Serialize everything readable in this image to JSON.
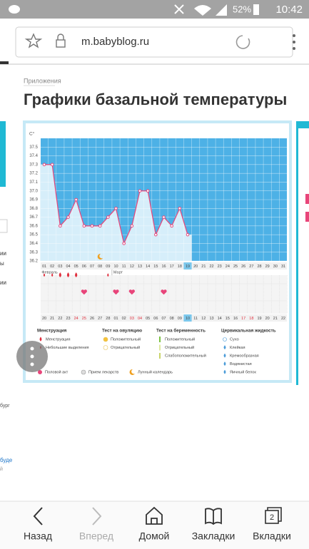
{
  "status_bar": {
    "battery": "52%",
    "time": "10:42"
  },
  "address_bar": {
    "url": "m.babyblog.ru"
  },
  "page": {
    "section": "Приложения",
    "title": "Графики базальной температуры",
    "left_fragments": [
      "ии",
      "ы",
      "ии",
      "бург",
      "буде",
      "й"
    ]
  },
  "chart_data": {
    "type": "line",
    "y_unit": "C°",
    "categories": [
      "01",
      "02",
      "03",
      "04",
      "05",
      "06",
      "07",
      "08",
      "09",
      "10",
      "11",
      "12",
      "13",
      "14",
      "15",
      "16",
      "17",
      "18",
      "19",
      "20",
      "21",
      "22",
      "23",
      "24",
      "25",
      "26",
      "27",
      "28",
      "29",
      "30",
      "31"
    ],
    "values": [
      37.3,
      37.3,
      36.6,
      36.7,
      36.9,
      36.6,
      36.6,
      36.6,
      36.7,
      36.8,
      36.4,
      36.6,
      37.0,
      37.0,
      36.5,
      36.7,
      36.6,
      36.8,
      36.5,
      null,
      null,
      null,
      null,
      null,
      null,
      null,
      null,
      null,
      null,
      null,
      null
    ],
    "color": "#e8457a",
    "fill_color": "#d6eefa",
    "background_color": "#4db1e6",
    "highlight_index": 18,
    "ylim": [
      36.2,
      37.6
    ],
    "yticks": [
      36.2,
      36.3,
      36.4,
      36.5,
      36.6,
      36.7,
      36.8,
      36.9,
      {
        "value": 37,
        "label": "37.0"
      },
      37.1,
      37.2,
      37.3,
      37.4,
      37.5
    ],
    "grid": true,
    "months": [
      {
        "label": "Февраль",
        "index": 0
      },
      {
        "label": "Март",
        "index": 9
      }
    ],
    "dates": [
      "20",
      "21",
      "22",
      "23",
      "24",
      "25",
      "26",
      "27",
      "28",
      "01",
      "02",
      "03",
      "04",
      "05",
      "06",
      "07",
      "08",
      "09",
      "10",
      "11",
      "12",
      "13",
      "14",
      "15",
      "16",
      "17",
      "18",
      "19",
      "20",
      "21",
      "22"
    ],
    "weekend": [
      false,
      false,
      false,
      false,
      true,
      true,
      false,
      false,
      false,
      false,
      false,
      true,
      true,
      false,
      false,
      false,
      false,
      false,
      false,
      false,
      false,
      false,
      false,
      false,
      false,
      true,
      true,
      false,
      false,
      false,
      false
    ],
    "menstruation": [
      1,
      1,
      0,
      0,
      0,
      null,
      null,
      null,
      1,
      null,
      null,
      null,
      null,
      null,
      null,
      null,
      null,
      null,
      null,
      null,
      null,
      null,
      null,
      null,
      null,
      null,
      null,
      null,
      null,
      null,
      null
    ],
    "intercourse": [
      false,
      false,
      false,
      false,
      false,
      true,
      false,
      false,
      false,
      true,
      false,
      true,
      false,
      false,
      false,
      true,
      false,
      false,
      false,
      false,
      false,
      false,
      false,
      false,
      false,
      false,
      false,
      false,
      false,
      false,
      false
    ],
    "lunar_days": [
      7
    ],
    "legend": [
      {
        "title": "Менструация",
        "items": [
          "Менструация",
          "Небольшие выделения"
        ]
      },
      {
        "title": "Тест на овуляцию",
        "items": [
          "Положительный",
          "Отрицательный"
        ]
      },
      {
        "title": "Тест на беременность",
        "items": [
          "Положительный",
          "Отрицательный",
          "Слабоположительный"
        ]
      },
      {
        "title": "Цервикальная жидкость",
        "items": [
          "Сухо",
          "Клейкая",
          "Кремообразная",
          "Водянистая",
          "Яичный белок"
        ]
      }
    ],
    "legend_extra": [
      "Половой акт",
      "Прием лекарств",
      "Лунный календарь"
    ]
  },
  "bottom_nav": {
    "items": [
      "Назад",
      "Вперед",
      "Домой",
      "Закладки",
      "Вкладки"
    ],
    "tabs_count": 2
  }
}
